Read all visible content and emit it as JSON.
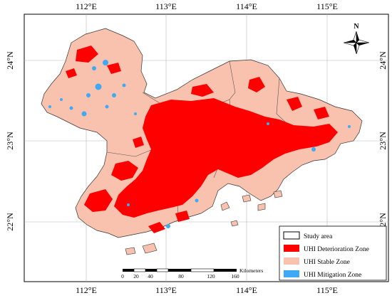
{
  "map": {
    "top_lon_labels": [
      "112°E",
      "113°E",
      "114°E",
      "115°E"
    ],
    "bottom_lon_labels": [
      "112°E",
      "113°E",
      "114°E",
      "115°E"
    ],
    "left_lat_labels": [
      "24°N",
      "23°N",
      "22°N"
    ],
    "right_lat_labels": [
      "24°N",
      "23°N",
      "22°N"
    ],
    "north_arrow": {
      "label": "N",
      "icon": "north-arrow-icon"
    },
    "legend": {
      "items": [
        {
          "label": "Study area",
          "color": "#ffffff",
          "outline": "#000000"
        },
        {
          "label": "UHI Deterioration Zone",
          "color": "#ff0000"
        },
        {
          "label": "UHI Stable Zone",
          "color": "#f9c2ae"
        },
        {
          "label": "UHI Mitigation Zone",
          "color": "#3fa9f5"
        }
      ]
    },
    "scale_bar": {
      "unit": "Kilometers",
      "ticks": [
        "0",
        "20",
        "40",
        "80",
        "120",
        "160"
      ]
    }
  }
}
